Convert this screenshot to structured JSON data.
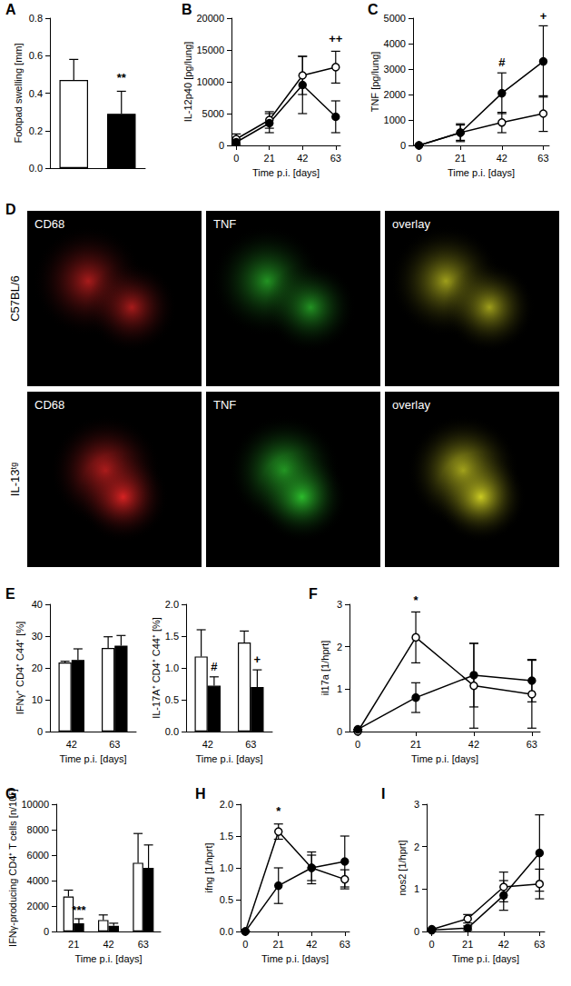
{
  "chart_data": [
    {
      "panel": "A",
      "type": "bar",
      "y_label": "Footpad swelling [mm]",
      "categories": [
        null,
        null
      ],
      "series": [
        {
          "colors": [
            "#ffffff",
            "#000000"
          ],
          "values": [
            0.47,
            0.29
          ],
          "errors": [
            0.11,
            0.12
          ]
        }
      ],
      "ylim": [
        0,
        0.8
      ],
      "yticks": [
        {
          "value": 0,
          "label": "0.0"
        },
        0.2,
        0.4,
        0.6,
        0.8
      ],
      "annotations": [
        {
          "text": "**",
          "index": 1,
          "series": 0,
          "y": 0.45
        }
      ],
      "grid": false
    },
    {
      "panel": "B",
      "type": "line",
      "y_label": "IL-12p40 [pg/lung]",
      "x_label": "Time p.i. [days]",
      "x": [
        0,
        21,
        42,
        63
      ],
      "series": [
        {
          "color": "#000000",
          "marker": "circle_open",
          "line_style": "solid",
          "values": [
            1000,
            4000,
            11000,
            12300
          ],
          "errors": [
            800,
            1300,
            3000,
            2500
          ]
        },
        {
          "color": "#000000",
          "marker": "circle",
          "line_style": "solid",
          "values": [
            500,
            3500,
            9500,
            4500
          ],
          "errors": [
            500,
            1500,
            4500,
            2500
          ]
        }
      ],
      "xlim": [
        -3,
        66
      ],
      "xticks": [
        0,
        21,
        42,
        63
      ],
      "ylim": [
        0,
        20000
      ],
      "yticks": [
        0,
        5000,
        10000,
        15000,
        20000
      ],
      "annotations": [
        {
          "text": "++",
          "x": 63,
          "y": 15900
        }
      ],
      "grid": false
    },
    {
      "panel": "C",
      "type": "line",
      "y_label": "TNF [pg/lung]",
      "x_label": "Time p.i. [days]",
      "x": [
        0,
        21,
        42,
        63
      ],
      "series": [
        {
          "color": "#000000",
          "marker": "circle_open",
          "line_style": "solid",
          "values": [
            0,
            500,
            900,
            1250
          ],
          "errors": [
            0,
            300,
            400,
            700
          ]
        },
        {
          "color": "#000000",
          "marker": "circle",
          "line_style": "solid",
          "values": [
            0,
            500,
            2050,
            3300
          ],
          "errors": [
            0,
            350,
            800,
            1400
          ]
        }
      ],
      "xlim": [
        -3,
        66
      ],
      "xticks": [
        0,
        21,
        42,
        63
      ],
      "ylim": [
        0,
        5000
      ],
      "yticks": [
        0,
        1000,
        2000,
        3000,
        4000,
        5000
      ],
      "annotations": [
        {
          "text": "#",
          "x": 42,
          "y": 3050
        },
        {
          "text": "+",
          "x": 63,
          "y": 4850
        }
      ],
      "grid": false
    },
    {
      "panel": "D",
      "type": "image_grid",
      "rows": [
        "C57BL/6",
        "IL-13ᵗᵍ"
      ],
      "columns": [
        "CD68",
        "TNF",
        "overlay"
      ],
      "colors": [
        "#e02424",
        "#2ec42e",
        "#d4d424"
      ]
    },
    {
      "panel": "E",
      "type": "bar",
      "y_label": "IFNγ⁺ CD4⁺ C44⁺ [%]",
      "x_label": "Time p.i. [days]",
      "categories": [
        "42",
        "63"
      ],
      "series": [
        {
          "color": "#ffffff",
          "values": [
            21.7,
            26.3
          ],
          "errors": [
            0.4,
            3.5
          ]
        },
        {
          "color": "#000000",
          "values": [
            22.5,
            27
          ],
          "errors": [
            3.5,
            3.2
          ]
        }
      ],
      "ylim": [
        0,
        40
      ],
      "yticks": [
        0,
        10,
        20,
        30,
        40
      ],
      "grid": false
    },
    {
      "type": "bar",
      "y_label": "IL-17A⁺ CD4⁺ C44⁺ [%]",
      "x_label": "Time p.i. [days]",
      "categories": [
        "42",
        "63"
      ],
      "series": [
        {
          "color": "#ffffff",
          "values": [
            1.18,
            1.4
          ],
          "errors": [
            0.42,
            0.18
          ]
        },
        {
          "color": "#000000",
          "values": [
            0.72,
            0.7
          ],
          "errors": [
            0.14,
            0.27
          ]
        }
      ],
      "ylim": [
        0,
        2.0
      ],
      "yticks": [
        {
          "value": 0,
          "label": "0.0"
        },
        0.5,
        {
          "value": 1,
          "label": "1.0"
        },
        1.5,
        {
          "value": 2,
          "label": "2.0"
        }
      ],
      "annotations": [
        {
          "text": "#",
          "index": 0,
          "series": 1,
          "y": 0.93
        },
        {
          "text": "+",
          "index": 1,
          "series": 1,
          "y": 1.04
        }
      ],
      "grid": false
    },
    {
      "panel": "F",
      "type": "line",
      "y_label": "il17a [1/hprt]",
      "x_label": "Time p.i. [days]",
      "x": [
        0,
        21,
        42,
        63
      ],
      "series": [
        {
          "color": "#000000",
          "marker": "circle_open",
          "line_style": "solid",
          "values": [
            0,
            2.22,
            1.08,
            0.88
          ],
          "errors": [
            0,
            0.6,
            1.0,
            0.8
          ]
        },
        {
          "color": "#000000",
          "marker": "circle",
          "line_style": "solid",
          "values": [
            0.05,
            0.8,
            1.33,
            1.2
          ],
          "errors": [
            0,
            0.35,
            0.75,
            0.5
          ]
        }
      ],
      "xlim": [
        -3,
        66
      ],
      "xticks": [
        0,
        21,
        42,
        63
      ],
      "ylim": [
        0,
        3
      ],
      "yticks": [
        0,
        1,
        2,
        3
      ],
      "annotations": [
        {
          "text": "*",
          "x": 21,
          "y": 2.95
        }
      ],
      "grid": false
    },
    {
      "panel": "G",
      "type": "bar",
      "y_label": "IFNγ-producing CD4⁺ T cells [n/10⁵]",
      "x_label": "Time p.i. [days]",
      "categories": [
        "21",
        "42",
        "63"
      ],
      "series": [
        {
          "color": "#ffffff",
          "values": [
            2750,
            900,
            5400
          ],
          "errors": [
            500,
            400,
            2300
          ]
        },
        {
          "color": "#000000",
          "values": [
            650,
            450,
            5000
          ],
          "errors": [
            350,
            200,
            1800
          ]
        }
      ],
      "ylim": [
        0,
        10000
      ],
      "yticks": [
        0,
        2000,
        4000,
        6000,
        8000,
        10000
      ],
      "annotations": [
        {
          "text": "***",
          "index": 0,
          "series": 1,
          "y": 1250
        }
      ],
      "grid": false
    },
    {
      "panel": "H",
      "type": "line",
      "y_label": "ifng [1/hprt]",
      "x_label": "Time p.i. [days]",
      "x": [
        0,
        21,
        42,
        63
      ],
      "series": [
        {
          "color": "#000000",
          "marker": "circle_open",
          "line_style": "solid",
          "values": [
            0,
            1.57,
            1.0,
            0.82
          ],
          "errors": [
            0,
            0.12,
            0.2,
            0.15
          ]
        },
        {
          "color": "#000000",
          "marker": "circle",
          "line_style": "solid",
          "values": [
            0,
            0.72,
            1.0,
            1.1
          ],
          "errors": [
            0,
            0.28,
            0.25,
            0.4
          ]
        }
      ],
      "xlim": [
        -3,
        66
      ],
      "xticks": [
        0,
        21,
        42,
        63
      ],
      "ylim": [
        0,
        2.0
      ],
      "yticks": [
        {
          "value": 0,
          "label": "0.0"
        },
        0.5,
        {
          "value": 1,
          "label": "1.0"
        },
        1.5,
        {
          "value": 2,
          "label": "2.0"
        }
      ],
      "annotations": [
        {
          "text": "*",
          "x": 21,
          "y": 1.8
        }
      ],
      "grid": false
    },
    {
      "panel": "I",
      "type": "line",
      "y_label": "nos2 [1/hprt]",
      "x_label": "Time p.i. [days]",
      "x": [
        0,
        21,
        42,
        63
      ],
      "series": [
        {
          "color": "#000000",
          "marker": "circle_open",
          "line_style": "solid",
          "values": [
            0.05,
            0.3,
            1.05,
            1.12
          ],
          "errors": [
            0,
            0.1,
            0.35,
            0.35
          ]
        },
        {
          "color": "#000000",
          "marker": "circle",
          "line_style": "solid",
          "values": [
            0.03,
            0.08,
            0.85,
            1.85
          ],
          "errors": [
            0,
            0.05,
            0.35,
            0.9
          ]
        }
      ],
      "xlim": [
        -3,
        66
      ],
      "xticks": [
        0,
        21,
        42,
        63
      ],
      "ylim": [
        0,
        3
      ],
      "yticks": [
        0,
        1,
        2,
        3
      ],
      "grid": false
    }
  ]
}
